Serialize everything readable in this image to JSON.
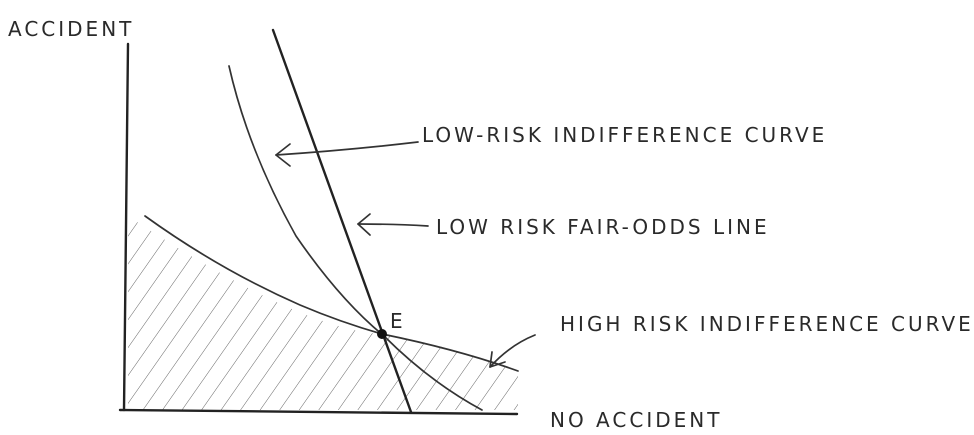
{
  "axes": {
    "y_label": "ACCIDENT",
    "x_label": "NO ACCIDENT"
  },
  "curves": {
    "low_risk_indifference": "LOW-RISK INDIFFERENCE CURVE",
    "low_risk_fair_odds": "LOW RISK FAIR-ODDS LINE",
    "high_risk_indifference": "HIGH RISK INDIFFERENCE CURVE"
  },
  "point": {
    "label": "E"
  },
  "colors": {
    "ink": "#222222",
    "hatch": "#666666",
    "background": "#ffffff"
  }
}
